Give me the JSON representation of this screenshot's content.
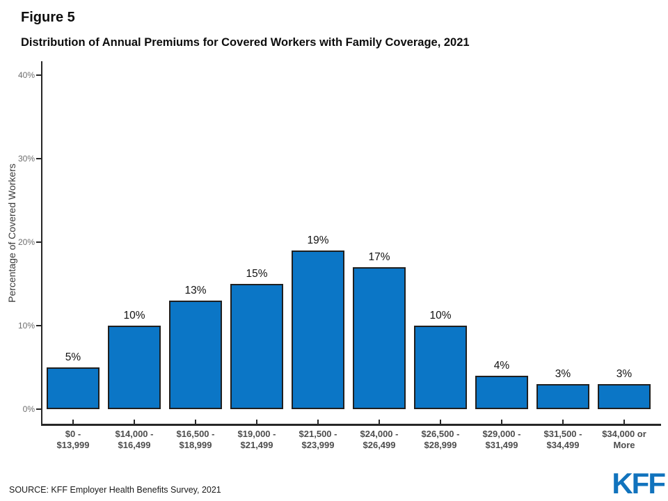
{
  "header": {
    "figure_label": "Figure 5",
    "title": "Distribution of Annual Premiums for Covered Workers with Family Coverage, 2021"
  },
  "chart_data": {
    "type": "bar",
    "title": "Distribution of Annual Premiums for Covered Workers with Family Coverage, 2021",
    "xlabel": "",
    "ylabel": "Percentage of Covered Workers",
    "categories": [
      [
        "$0 -",
        "$13,999"
      ],
      [
        "$14,000 -",
        "$16,499"
      ],
      [
        "$16,500 -",
        "$18,999"
      ],
      [
        "$19,000 -",
        "$21,499"
      ],
      [
        "$21,500 -",
        "$23,999"
      ],
      [
        "$24,000 -",
        "$26,499"
      ],
      [
        "$26,500 -",
        "$28,999"
      ],
      [
        "$29,000 -",
        "$31,499"
      ],
      [
        "$31,500 -",
        "$34,499"
      ],
      [
        "$34,000 or",
        "More"
      ]
    ],
    "values": [
      5,
      10,
      13,
      15,
      19,
      17,
      10,
      4,
      3,
      3
    ],
    "value_labels": [
      "5%",
      "10%",
      "13%",
      "15%",
      "19%",
      "17%",
      "10%",
      "4%",
      "3%",
      "3%"
    ],
    "y_ticks": [
      "0%",
      "10%",
      "20%",
      "30%",
      "40%"
    ],
    "ylim": [
      0,
      42
    ],
    "grid": "off",
    "legend": "none",
    "colors": {
      "bar_fill": "#0B76C6",
      "bar_border": "#1F1F1F",
      "axis": "#262626",
      "y_tick_label": "#6E6E6E",
      "x_tick_label": "#4D4D4D",
      "value_label": "#111111"
    }
  },
  "footer": {
    "source": "SOURCE: KFF Employer Health Benefits Survey, 2021",
    "logo_text": "KFF",
    "logo_color": "#1173BD"
  }
}
